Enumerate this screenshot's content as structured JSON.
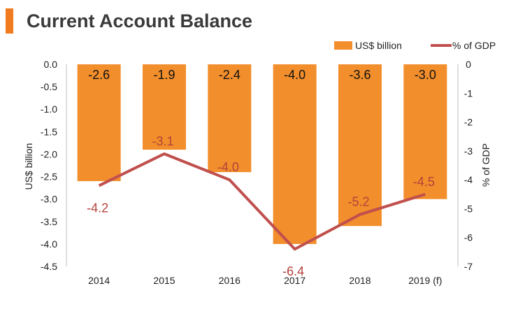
{
  "header": {
    "title": "Current Account Balance"
  },
  "chart_data": {
    "type": "bar",
    "title": "Current Account Balance",
    "categories": [
      "2014",
      "2015",
      "2016",
      "2017",
      "2018",
      "2019 (f)"
    ],
    "series": [
      {
        "name": "US$ billion",
        "type": "bar",
        "axis": "left",
        "values": [
          -2.6,
          -1.9,
          -2.4,
          -4.0,
          -3.6,
          -3.0
        ],
        "labels": [
          "-2.6",
          "-1.9",
          "-2.4",
          "-4.0",
          "-3.6",
          "-3.0"
        ]
      },
      {
        "name": "% of GDP",
        "type": "line",
        "axis": "right",
        "values": [
          -4.2,
          -3.1,
          -4.0,
          -6.4,
          -5.2,
          -4.5
        ],
        "labels": [
          "-4.2",
          "-3.1",
          "-4.0",
          "-6.4",
          "-5.2",
          "-4.5"
        ]
      }
    ],
    "y_left": {
      "label": "US$ billion",
      "ylim": [
        -4.5,
        0.0
      ],
      "ticks": [
        "0.0",
        "-0.5",
        "-1.0",
        "-1.5",
        "-2.0",
        "-2.5",
        "-3.0",
        "-3.5",
        "-4.0",
        "-4.5"
      ]
    },
    "y_right": {
      "label": "% of GDP",
      "ylim": [
        -7,
        0
      ],
      "ticks": [
        "0",
        "-1",
        "-2",
        "-3",
        "-4",
        "-5",
        "-6",
        "-7"
      ]
    },
    "legend_position": "top-right",
    "grid": false,
    "colors": {
      "bar": "#f28e2b",
      "line": "#c0504d",
      "line_label": "#b5423c",
      "accent": "#f07c1f"
    }
  }
}
